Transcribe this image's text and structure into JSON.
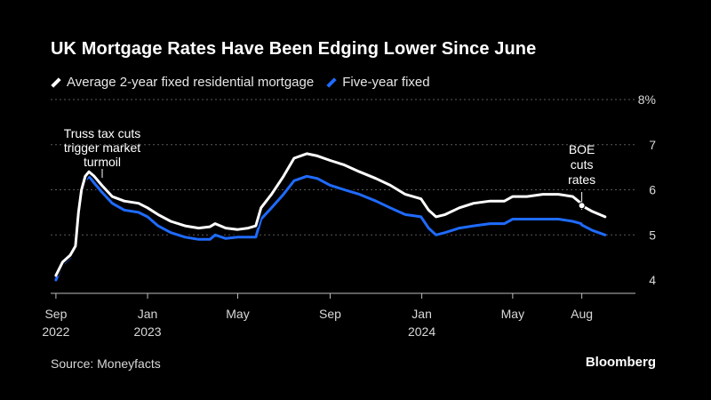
{
  "header": {
    "title": "UK Mortgage Rates Have Been Edging Lower Since June"
  },
  "legend": [
    {
      "label": "Average 2-year fixed residential mortgage",
      "color": "#ffffff"
    },
    {
      "label": "Five-year fixed",
      "color": "#1f6bff"
    }
  ],
  "footer": {
    "source": "Source: Moneyfacts",
    "brand": "Bloomberg"
  },
  "chart_data": {
    "type": "line",
    "ylim": [
      4,
      8
    ],
    "y_ticks": [
      "4",
      "5",
      "6",
      "7",
      "8%"
    ],
    "x_ticks": [
      {
        "date": "2022-09-01",
        "label": [
          "Sep",
          "2022"
        ]
      },
      {
        "date": "2023-01-01",
        "label": [
          "Jan",
          "2023"
        ]
      },
      {
        "date": "2023-05-01",
        "label": [
          "May",
          ""
        ]
      },
      {
        "date": "2023-09-01",
        "label": [
          "Sep",
          ""
        ]
      },
      {
        "date": "2024-01-01",
        "label": [
          "Jan",
          "2024"
        ]
      },
      {
        "date": "2024-05-01",
        "label": [
          "May",
          ""
        ]
      },
      {
        "date": "2024-08-01",
        "label": [
          "Aug",
          ""
        ]
      }
    ],
    "grid": true,
    "annotations": [
      {
        "text": [
          "Truss tax cuts",
          "trigger market",
          "turmoil"
        ],
        "date": "2022-10-10",
        "value": 6.4
      },
      {
        "text": [
          "BOE",
          "cuts",
          "rates"
        ],
        "date": "2024-08-01",
        "value": 5.65
      }
    ],
    "series": [
      {
        "name": "Average 2-year fixed residential mortgage",
        "color": "#ffffff",
        "points": [
          [
            "2022-09-01",
            4.1
          ],
          [
            "2022-09-10",
            4.4
          ],
          [
            "2022-09-20",
            4.55
          ],
          [
            "2022-09-27",
            4.75
          ],
          [
            "2022-10-01",
            5.5
          ],
          [
            "2022-10-05",
            6.0
          ],
          [
            "2022-10-10",
            6.3
          ],
          [
            "2022-10-15",
            6.4
          ],
          [
            "2022-10-22",
            6.3
          ],
          [
            "2022-11-01",
            6.1
          ],
          [
            "2022-11-15",
            5.85
          ],
          [
            "2022-12-01",
            5.75
          ],
          [
            "2022-12-20",
            5.7
          ],
          [
            "2023-01-01",
            5.6
          ],
          [
            "2023-01-15",
            5.45
          ],
          [
            "2023-02-01",
            5.3
          ],
          [
            "2023-02-20",
            5.2
          ],
          [
            "2023-03-10",
            5.15
          ],
          [
            "2023-03-25",
            5.18
          ],
          [
            "2023-04-01",
            5.25
          ],
          [
            "2023-04-15",
            5.15
          ],
          [
            "2023-05-01",
            5.12
          ],
          [
            "2023-05-15",
            5.15
          ],
          [
            "2023-05-25",
            5.2
          ],
          [
            "2023-06-01",
            5.6
          ],
          [
            "2023-06-15",
            5.9
          ],
          [
            "2023-07-01",
            6.3
          ],
          [
            "2023-07-15",
            6.7
          ],
          [
            "2023-08-01",
            6.8
          ],
          [
            "2023-08-15",
            6.75
          ],
          [
            "2023-09-01",
            6.65
          ],
          [
            "2023-09-20",
            6.55
          ],
          [
            "2023-10-10",
            6.4
          ],
          [
            "2023-11-01",
            6.25
          ],
          [
            "2023-11-20",
            6.1
          ],
          [
            "2023-12-10",
            5.9
          ],
          [
            "2023-12-31",
            5.8
          ],
          [
            "2024-01-10",
            5.55
          ],
          [
            "2024-01-20",
            5.4
          ],
          [
            "2024-02-01",
            5.45
          ],
          [
            "2024-02-20",
            5.6
          ],
          [
            "2024-03-10",
            5.7
          ],
          [
            "2024-04-01",
            5.75
          ],
          [
            "2024-04-20",
            5.75
          ],
          [
            "2024-05-01",
            5.85
          ],
          [
            "2024-05-20",
            5.85
          ],
          [
            "2024-06-10",
            5.9
          ],
          [
            "2024-07-01",
            5.9
          ],
          [
            "2024-07-20",
            5.85
          ],
          [
            "2024-07-31",
            5.7
          ],
          [
            "2024-08-01",
            5.65
          ],
          [
            "2024-08-15",
            5.52
          ],
          [
            "2024-09-01",
            5.4
          ]
        ]
      },
      {
        "name": "Five-year fixed",
        "color": "#1f6bff",
        "points": [
          [
            "2022-09-01",
            4.0
          ],
          [
            "2022-09-10",
            4.35
          ],
          [
            "2022-09-20",
            4.5
          ],
          [
            "2022-09-27",
            4.7
          ],
          [
            "2022-10-01",
            5.4
          ],
          [
            "2022-10-05",
            5.9
          ],
          [
            "2022-10-10",
            6.2
          ],
          [
            "2022-10-15",
            6.3
          ],
          [
            "2022-10-22",
            6.15
          ],
          [
            "2022-11-01",
            5.95
          ],
          [
            "2022-11-15",
            5.7
          ],
          [
            "2022-12-01",
            5.55
          ],
          [
            "2022-12-20",
            5.5
          ],
          [
            "2023-01-01",
            5.4
          ],
          [
            "2023-01-15",
            5.2
          ],
          [
            "2023-02-01",
            5.05
          ],
          [
            "2023-02-20",
            4.95
          ],
          [
            "2023-03-10",
            4.9
          ],
          [
            "2023-03-25",
            4.9
          ],
          [
            "2023-04-01",
            5.0
          ],
          [
            "2023-04-15",
            4.92
          ],
          [
            "2023-05-01",
            4.95
          ],
          [
            "2023-05-15",
            4.95
          ],
          [
            "2023-05-25",
            4.95
          ],
          [
            "2023-06-01",
            5.35
          ],
          [
            "2023-06-15",
            5.6
          ],
          [
            "2023-07-01",
            5.9
          ],
          [
            "2023-07-15",
            6.2
          ],
          [
            "2023-08-01",
            6.3
          ],
          [
            "2023-08-15",
            6.25
          ],
          [
            "2023-09-01",
            6.1
          ],
          [
            "2023-09-20",
            6.0
          ],
          [
            "2023-10-10",
            5.9
          ],
          [
            "2023-11-01",
            5.75
          ],
          [
            "2023-11-20",
            5.6
          ],
          [
            "2023-12-10",
            5.45
          ],
          [
            "2023-12-31",
            5.4
          ],
          [
            "2024-01-10",
            5.15
          ],
          [
            "2024-01-20",
            5.0
          ],
          [
            "2024-02-01",
            5.05
          ],
          [
            "2024-02-20",
            5.15
          ],
          [
            "2024-03-10",
            5.2
          ],
          [
            "2024-04-01",
            5.25
          ],
          [
            "2024-04-20",
            5.25
          ],
          [
            "2024-05-01",
            5.35
          ],
          [
            "2024-05-20",
            5.35
          ],
          [
            "2024-06-10",
            5.35
          ],
          [
            "2024-07-01",
            5.35
          ],
          [
            "2024-07-20",
            5.3
          ],
          [
            "2024-07-31",
            5.25
          ],
          [
            "2024-08-01",
            5.22
          ],
          [
            "2024-08-15",
            5.1
          ],
          [
            "2024-09-01",
            5.0
          ]
        ]
      }
    ]
  }
}
